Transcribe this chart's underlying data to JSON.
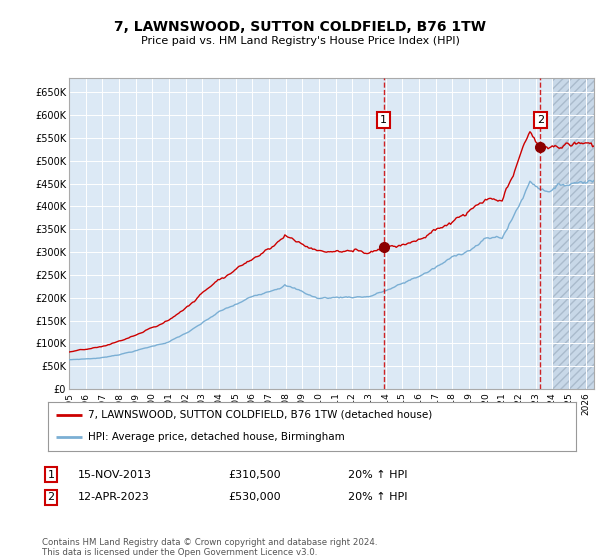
{
  "title": "7, LAWNSWOOD, SUTTON COLDFIELD, B76 1TW",
  "subtitle": "Price paid vs. HM Land Registry's House Price Index (HPI)",
  "red_label": "7, LAWNSWOOD, SUTTON COLDFIELD, B76 1TW (detached house)",
  "blue_label": "HPI: Average price, detached house, Birmingham",
  "transaction1_date": "15-NOV-2013",
  "transaction1_price": "£310,500",
  "transaction1_hpi": "20% ↑ HPI",
  "transaction1_x": 2013.875,
  "transaction1_y": 310500,
  "transaction2_date": "12-APR-2023",
  "transaction2_price": "£530,000",
  "transaction2_hpi": "20% ↑ HPI",
  "transaction2_x": 2023.29,
  "transaction2_y": 530000,
  "ylim": [
    0,
    680000
  ],
  "xlim_start": 1995.0,
  "xlim_end": 2026.5,
  "background_color": "#ffffff",
  "plot_bg_color": "#dce9f5",
  "grid_color": "#ffffff",
  "red_line_color": "#cc0000",
  "blue_line_color": "#7bafd4",
  "dashed_line_color": "#cc0000",
  "marker_color": "#8B0000",
  "hatch_color": "#c8d8e8",
  "footer_text": "Contains HM Land Registry data © Crown copyright and database right 2024.\nThis data is licensed under the Open Government Licence v3.0.",
  "yticks": [
    0,
    50000,
    100000,
    150000,
    200000,
    250000,
    300000,
    350000,
    400000,
    450000,
    500000,
    550000,
    600000,
    650000
  ],
  "ytick_labels": [
    "£0",
    "£50K",
    "£100K",
    "£150K",
    "£200K",
    "£250K",
    "£300K",
    "£350K",
    "£400K",
    "£450K",
    "£500K",
    "£550K",
    "£600K",
    "£650K"
  ],
  "xticks": [
    1995,
    1996,
    1997,
    1998,
    1999,
    2000,
    2001,
    2002,
    2003,
    2004,
    2005,
    2006,
    2007,
    2008,
    2009,
    2010,
    2011,
    2012,
    2013,
    2014,
    2015,
    2016,
    2017,
    2018,
    2019,
    2020,
    2021,
    2022,
    2023,
    2024,
    2025,
    2026
  ]
}
